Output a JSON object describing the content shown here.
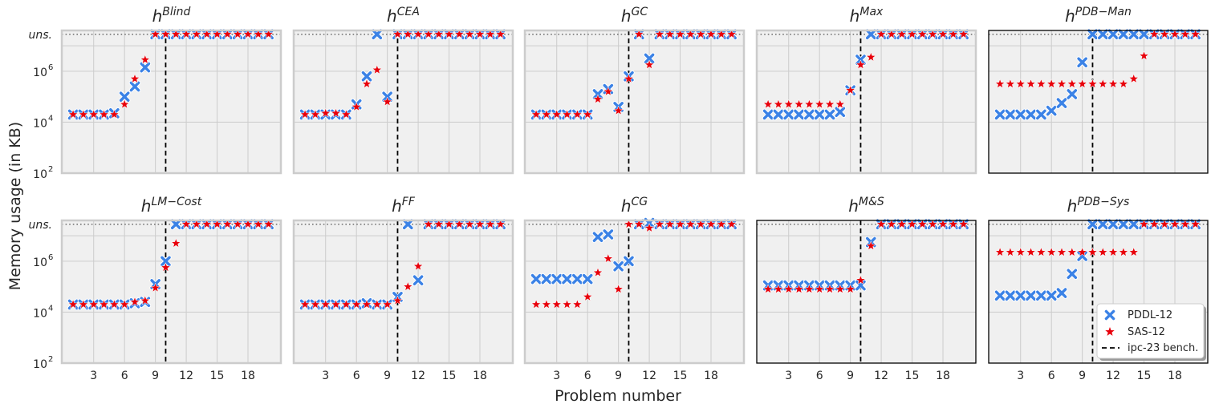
{
  "figure": {
    "ylabel": "Memory usage (in KB)",
    "xlabel": "Problem number"
  },
  "colors": {
    "pddl": "#3b82e6",
    "sas": "#e8000b",
    "panel_bg": "#f0f0f0",
    "grid": "#cccccc"
  },
  "chart_data": {
    "type": "scatter",
    "yscale": "log",
    "ylim_exp": [
      2,
      7.6
    ],
    "ytick_exps": [
      2,
      4,
      6
    ],
    "ytick_labels": [
      "10",
      "10",
      "10"
    ],
    "ytick_sup": [
      "2",
      "4",
      "6"
    ],
    "uns_label": "uns.",
    "uns_exp": 7.45,
    "xlim": [
      -0.1,
      21.2
    ],
    "xticks": [
      3,
      6,
      9,
      12,
      15,
      18
    ],
    "benchmark_x": 10,
    "legend": {
      "pddl": "PDDL-12",
      "sas": "SAS-12",
      "bench": "ipc-23 bench."
    },
    "panels": [
      {
        "base": "h",
        "sup": "Blind",
        "pddl": [
          4.3,
          4.3,
          4.3,
          4.3,
          4.35,
          5.0,
          5.4,
          6.15,
          "U",
          "U",
          "U",
          "U",
          "U",
          "U",
          "U",
          "U",
          "U",
          "U",
          "U",
          "U"
        ],
        "sas": [
          4.3,
          4.3,
          4.3,
          4.3,
          4.3,
          4.7,
          5.7,
          6.45,
          "U",
          "U",
          "U",
          "U",
          "U",
          "U",
          "U",
          "U",
          "U",
          "U",
          "U",
          "U"
        ]
      },
      {
        "base": "h",
        "sup": "CEA",
        "pddl": [
          4.3,
          4.3,
          4.3,
          4.3,
          4.3,
          4.7,
          5.8,
          "U",
          5.0,
          "U",
          "U",
          "U",
          "U",
          "U",
          "U",
          "U",
          "U",
          "U",
          "U",
          "U"
        ],
        "sas": [
          4.3,
          4.3,
          4.35,
          4.35,
          4.3,
          4.6,
          5.5,
          6.05,
          4.8,
          "U",
          "U",
          "U",
          "U",
          "U",
          "U",
          "U",
          "U",
          "U",
          "U",
          "U"
        ]
      },
      {
        "base": "h",
        "sup": "GC",
        "pddl": [
          4.3,
          4.3,
          4.3,
          4.3,
          4.3,
          4.3,
          5.1,
          5.3,
          4.6,
          5.8,
          "U",
          6.5,
          "U",
          "U",
          "U",
          "U",
          "U",
          "U",
          "U",
          "U"
        ],
        "sas": [
          4.3,
          4.3,
          4.3,
          4.3,
          4.3,
          4.3,
          4.9,
          5.2,
          4.45,
          5.7,
          "U",
          6.25,
          "U",
          "U",
          "U",
          "U",
          "U",
          "U",
          "U",
          "U"
        ]
      },
      {
        "base": "h",
        "sup": "Max",
        "pddl": [
          4.3,
          4.3,
          4.3,
          4.3,
          4.3,
          4.3,
          4.3,
          4.4,
          5.25,
          6.45,
          "U",
          "U",
          "U",
          "U",
          "U",
          "U",
          "U",
          "U",
          "U",
          "U"
        ],
        "sas": [
          4.7,
          4.7,
          4.7,
          4.7,
          4.7,
          4.7,
          4.7,
          4.7,
          5.25,
          6.25,
          6.55,
          "U",
          "U",
          "U",
          "U",
          "U",
          "U",
          "U",
          "U",
          "U"
        ]
      },
      {
        "base": "h",
        "sup": "PDB−Man",
        "framed": true,
        "pddl": [
          4.3,
          4.3,
          4.3,
          4.3,
          4.3,
          4.45,
          4.75,
          5.1,
          6.35,
          "U",
          "U",
          "U",
          "U",
          "U",
          "U",
          "U",
          "U",
          "U",
          "U",
          "U"
        ],
        "sas": [
          5.5,
          5.5,
          5.5,
          5.5,
          5.5,
          5.5,
          5.5,
          5.5,
          5.5,
          5.5,
          5.5,
          5.5,
          5.5,
          5.7,
          6.6,
          "U",
          "U",
          "U",
          "U",
          "U"
        ]
      },
      {
        "base": "h",
        "sup": "LM−Cost",
        "pddl": [
          4.3,
          4.3,
          4.3,
          4.3,
          4.3,
          4.3,
          4.35,
          4.4,
          5.1,
          6.0,
          "U",
          "U",
          "U",
          "U",
          "U",
          "U",
          "U",
          "U",
          "U",
          "U"
        ],
        "sas": [
          4.3,
          4.3,
          4.3,
          4.3,
          4.3,
          4.3,
          4.4,
          4.45,
          4.95,
          5.75,
          6.7,
          "U",
          "U",
          "U",
          "U",
          "U",
          "U",
          "U",
          "U",
          "U"
        ]
      },
      {
        "base": "h",
        "sup": "FF",
        "pddl": [
          4.3,
          4.3,
          4.3,
          4.3,
          4.3,
          4.3,
          4.35,
          4.3,
          4.3,
          4.6,
          "U",
          5.25,
          "U",
          "U",
          "U",
          "U",
          "U",
          "U",
          "U",
          "U"
        ],
        "sas": [
          4.3,
          4.3,
          4.3,
          4.3,
          4.3,
          4.3,
          4.3,
          4.3,
          4.3,
          4.45,
          5.0,
          5.8,
          "U",
          "U",
          "U",
          "U",
          "U",
          "U",
          "U",
          "U"
        ]
      },
      {
        "base": "h",
        "sup": "CG",
        "pddl": [
          5.3,
          5.3,
          5.3,
          5.3,
          5.3,
          5.3,
          6.95,
          7.05,
          5.8,
          6.0,
          "U",
          7.5,
          "U",
          "U",
          "U",
          "U",
          "U",
          "U",
          "U",
          "U"
        ],
        "sas": [
          4.3,
          4.3,
          4.3,
          4.3,
          4.3,
          4.6,
          5.55,
          6.1,
          4.9,
          "U",
          "U",
          7.3,
          "U",
          "U",
          "U",
          "U",
          "U",
          "U",
          "U",
          "U"
        ]
      },
      {
        "base": "h",
        "sup": "M&S",
        "framed": true,
        "pddl": [
          5.05,
          5.05,
          5.05,
          5.05,
          5.05,
          5.05,
          5.05,
          5.05,
          5.05,
          5.05,
          6.75,
          "U",
          "U",
          "U",
          "U",
          "U",
          "U",
          "U",
          "U",
          "U"
        ],
        "sas": [
          4.9,
          4.9,
          4.9,
          4.9,
          4.9,
          4.9,
          4.9,
          4.9,
          4.9,
          5.25,
          6.6,
          "U",
          "U",
          "U",
          "U",
          "U",
          "U",
          "U",
          "U",
          "U"
        ]
      },
      {
        "base": "h",
        "sup": "PDB−Sys",
        "framed": true,
        "pddl": [
          4.65,
          4.65,
          4.65,
          4.65,
          4.65,
          4.65,
          4.75,
          5.5,
          6.2,
          "U",
          "U",
          "U",
          "U",
          "U",
          "U",
          "U",
          "U",
          "U",
          "U",
          "U"
        ],
        "sas": [
          6.35,
          6.35,
          6.35,
          6.35,
          6.35,
          6.35,
          6.35,
          6.35,
          6.35,
          6.35,
          6.35,
          6.35,
          6.35,
          6.35,
          "U",
          "U",
          "U",
          "U",
          "U",
          "U"
        ]
      }
    ]
  }
}
